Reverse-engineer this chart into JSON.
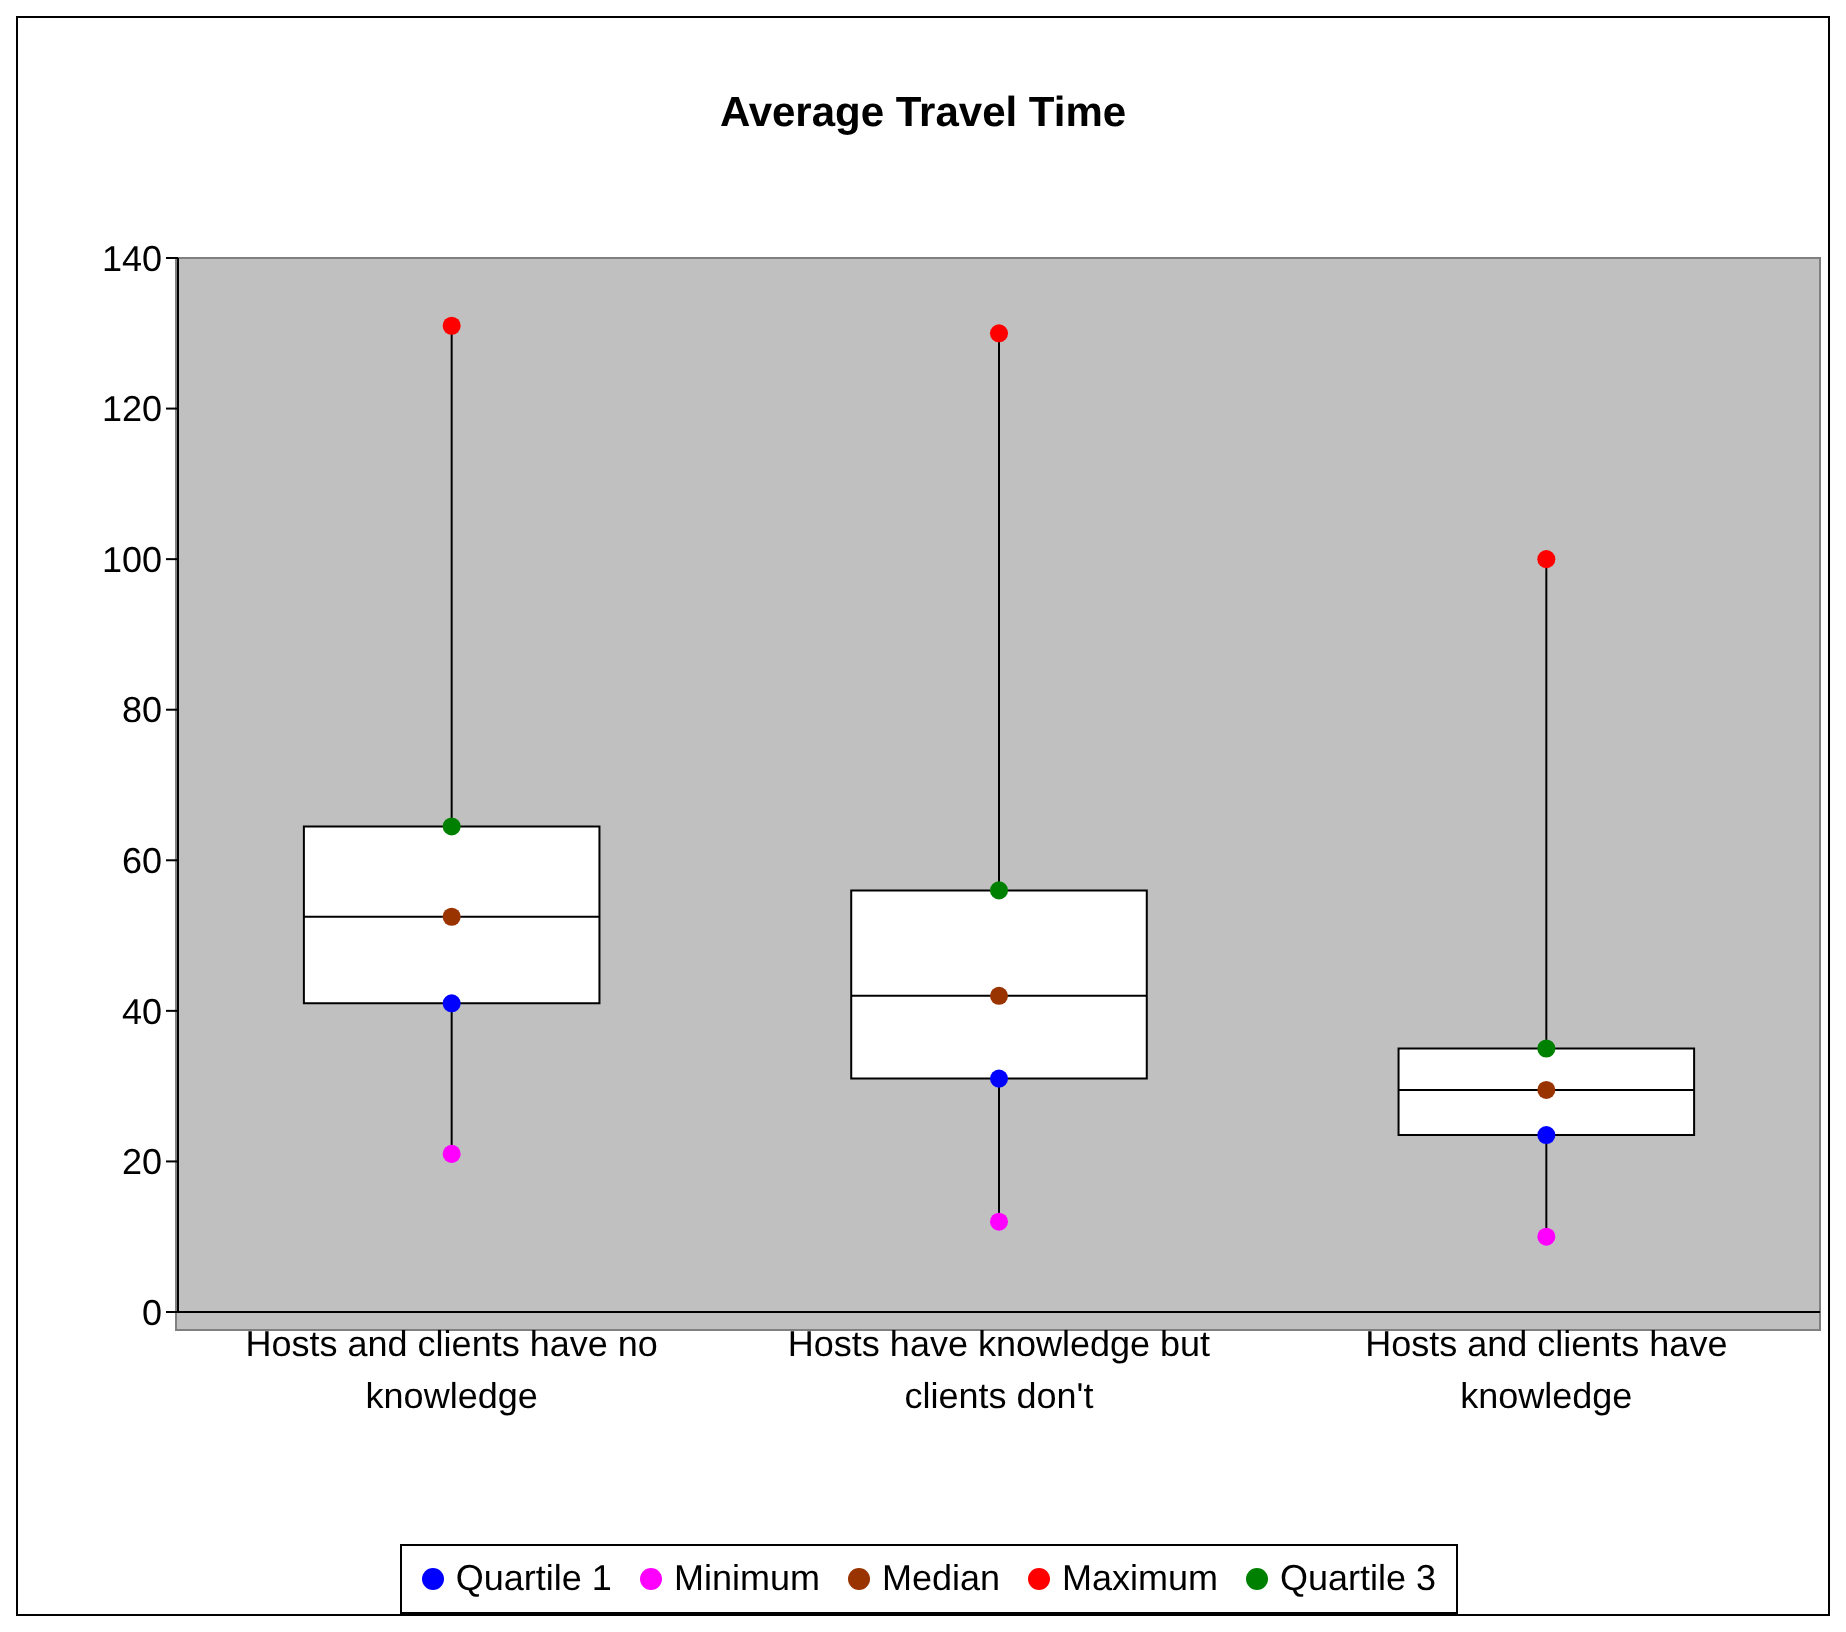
{
  "chart_data": {
    "type": "box",
    "title": "Average Travel Time",
    "categories": [
      "Hosts and clients have no knowledge",
      "Hosts have knowledge but clients don't",
      "Hosts and clients have knowledge"
    ],
    "boxes": [
      {
        "low": 21,
        "q1": 41,
        "median": 52.5,
        "q3": 64.5,
        "high": 131
      },
      {
        "low": 12,
        "q1": 31,
        "median": 42,
        "q3": 56,
        "high": 130
      },
      {
        "low": 10,
        "q1": 23.5,
        "median": 29.5,
        "q3": 35,
        "high": 100
      }
    ],
    "series": [
      {
        "name": "Quartile 1",
        "type": "scatter",
        "color": "#0000ff",
        "values": [
          41,
          31,
          23.5
        ]
      },
      {
        "name": "Minimum",
        "type": "scatter",
        "color": "#ff00ff",
        "values": [
          21,
          12,
          10
        ]
      },
      {
        "name": "Median",
        "type": "scatter",
        "color": "#993300",
        "values": [
          52.5,
          42,
          29.5
        ]
      },
      {
        "name": "Maximum",
        "type": "scatter",
        "color": "#ff0000",
        "values": [
          131,
          130,
          100
        ]
      },
      {
        "name": "Quartile 3",
        "type": "scatter",
        "color": "#008000",
        "values": [
          64.5,
          56,
          35
        ]
      }
    ],
    "ylim": [
      0,
      140
    ],
    "yticks": [
      0,
      20,
      40,
      60,
      80,
      100,
      120,
      140
    ],
    "marker": "circle",
    "legend": "bottom"
  }
}
